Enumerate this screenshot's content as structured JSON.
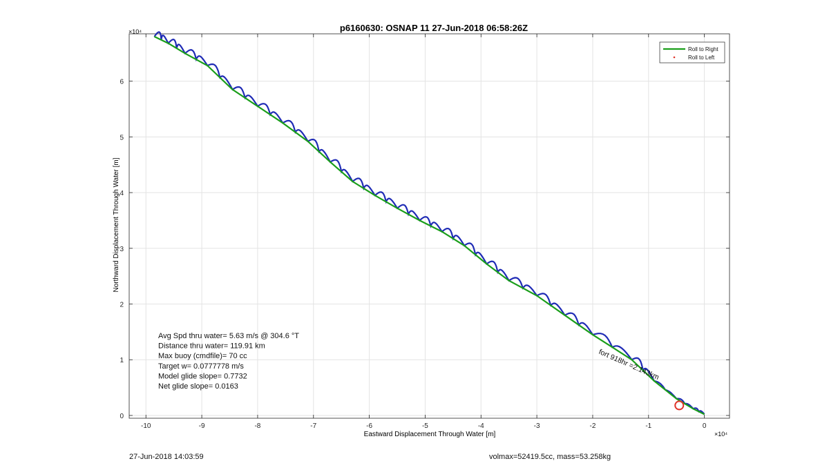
{
  "chart_data": {
    "type": "line",
    "title": "p6160630: OSNAP 11 27-Jun-2018 06:58:26Z",
    "xlabel": "Eastward Displacement Through Water [m]",
    "ylabel": "Northward Displacement Through Water [m]",
    "x_exponent_label": "×10⁴",
    "y_exponent_label": "×10⁴",
    "xlim": [
      -10.3,
      0.45
    ],
    "ylim": [
      -0.05,
      6.85
    ],
    "xticks": [
      -10,
      -9,
      -8,
      -7,
      -6,
      -5,
      -4,
      -3,
      -2,
      -1,
      0
    ],
    "yticks": [
      0,
      1,
      2,
      3,
      4,
      5,
      6
    ],
    "grid": true,
    "legend": {
      "placement": "top-right",
      "entries": [
        {
          "name": "Roll to Right",
          "color": "#1a9e1a",
          "marker": "line"
        },
        {
          "name": "Roll to Left",
          "color": "#e0342a",
          "marker": "dot"
        }
      ]
    },
    "series": [
      {
        "name": "Roll to Right",
        "color": "#1a9e1a",
        "x": [
          -9.85,
          -9.6,
          -9.3,
          -8.9,
          -8.45,
          -8.0,
          -7.55,
          -7.1,
          -6.7,
          -6.3,
          -5.9,
          -5.5,
          -5.1,
          -4.7,
          -4.3,
          -3.9,
          -3.5,
          -3.0,
          -2.5,
          -2.0,
          -1.3,
          -0.9,
          -0.5,
          -0.2,
          0.0
        ],
        "y": [
          6.8,
          6.68,
          6.5,
          6.28,
          5.85,
          5.55,
          5.25,
          4.92,
          4.55,
          4.2,
          3.95,
          3.72,
          3.5,
          3.3,
          3.05,
          2.72,
          2.42,
          2.15,
          1.8,
          1.45,
          1.0,
          0.62,
          0.3,
          0.12,
          0.02
        ]
      }
    ],
    "annotations": [
      "Avg Spd thru water=  5.63 m/s @ 304.6 °T",
      "Distance thru water= 119.91 km",
      "Max buoy (cmdfile)= 70 cc",
      "Target w= 0.0777778 m/s",
      "Model glide slope= 0.7732",
      "Net glide slope= 0.0163"
    ],
    "rotated_annotation": "fort 918hr =2.143km",
    "red_circle_marker": {
      "x": -0.45,
      "y": 0.18
    }
  },
  "footer": {
    "timestamp": "27-Jun-2018 14:03:59",
    "vol_mass": "volmax=52419.5cc, mass=53.258kg"
  }
}
